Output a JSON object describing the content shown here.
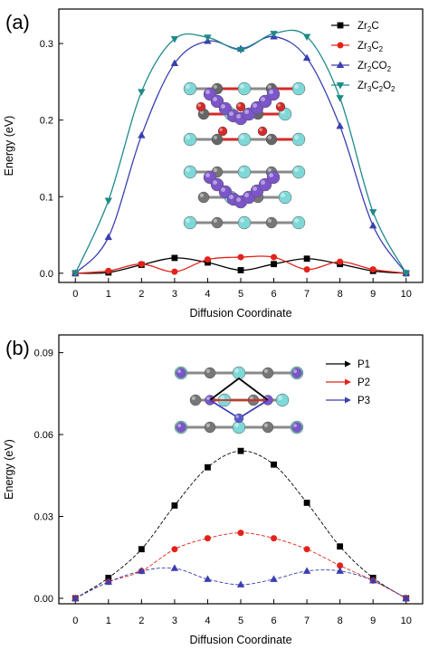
{
  "chart_data": [
    {
      "type": "line",
      "panel_label": "(a)",
      "xlabel": "Diffusion Coordinate",
      "ylabel": "Energy (eV)",
      "xlim": [
        -0.5,
        10.5
      ],
      "ylim": [
        -0.012,
        0.345
      ],
      "xticks": [
        "0",
        "1",
        "2",
        "3",
        "4",
        "5",
        "6",
        "7",
        "8",
        "9",
        "10"
      ],
      "yticks": [
        "0.0",
        "0.1",
        "0.2",
        "0.3"
      ],
      "ytick_values": [
        0.0,
        0.1,
        0.2,
        0.3
      ],
      "legend_position": "top-right",
      "x": [
        0,
        1,
        2,
        3,
        4,
        5,
        6,
        7,
        8,
        9,
        10
      ],
      "series": [
        {
          "name": "Zr2C",
          "sub": [
            "Zr",
            "2",
            "C"
          ],
          "color": "#000000",
          "marker": "square",
          "values": [
            0.0,
            0.001,
            0.011,
            0.02,
            0.014,
            0.004,
            0.012,
            0.019,
            0.012,
            0.003,
            0.0
          ]
        },
        {
          "name": "Zr3C2",
          "sub": [
            "Zr",
            "3",
            "C",
            "2"
          ],
          "color": "#e2231a",
          "marker": "circle",
          "values": [
            0.0,
            0.003,
            0.012,
            0.002,
            0.018,
            0.021,
            0.021,
            0.005,
            0.015,
            0.005,
            0.0
          ]
        },
        {
          "name": "Zr2CO2",
          "sub": [
            "Zr",
            "2",
            "CO",
            "2"
          ],
          "color": "#3a3fb0",
          "marker": "triangle-up",
          "values": [
            0.0,
            0.047,
            0.18,
            0.274,
            0.303,
            0.293,
            0.309,
            0.281,
            0.192,
            0.062,
            0.0
          ]
        },
        {
          "name": "Zr3C2O2",
          "sub": [
            "Zr",
            "3",
            "C",
            "2",
            "O",
            "2"
          ],
          "color": "#1f8a8a",
          "marker": "triangle-down",
          "values": [
            0.0,
            0.095,
            0.237,
            0.306,
            0.308,
            0.292,
            0.313,
            0.309,
            0.229,
            0.08,
            0.0
          ]
        }
      ]
    },
    {
      "type": "line",
      "panel_label": "(b)",
      "xlabel": "Diffusion Coordinate",
      "ylabel": "Energy (eV)",
      "xlim": [
        -0.5,
        10.5
      ],
      "ylim": [
        -0.002,
        0.0965
      ],
      "xticks": [
        "0",
        "1",
        "2",
        "3",
        "4",
        "5",
        "6",
        "7",
        "8",
        "9",
        "10"
      ],
      "yticks": [
        "0.00",
        "0.03",
        "0.06",
        "0.09"
      ],
      "ytick_values": [
        0.0,
        0.03,
        0.06,
        0.09
      ],
      "legend_position": "top-right",
      "x": [
        0,
        1,
        2,
        3,
        4,
        5,
        6,
        7,
        8,
        9,
        10
      ],
      "series": [
        {
          "name": "P1",
          "color": "#000000",
          "marker": "square",
          "values": [
            0.0,
            0.0075,
            0.018,
            0.034,
            0.048,
            0.054,
            0.049,
            0.035,
            0.019,
            0.0075,
            0.0
          ]
        },
        {
          "name": "P2",
          "color": "#e2231a",
          "marker": "circle",
          "values": [
            0.0,
            0.006,
            0.01,
            0.018,
            0.022,
            0.024,
            0.022,
            0.018,
            0.012,
            0.0065,
            0.0
          ]
        },
        {
          "name": "P3",
          "color": "#3a3fb0",
          "marker": "triangle-up",
          "values": [
            0.0,
            0.006,
            0.01,
            0.011,
            0.007,
            0.005,
            0.007,
            0.01,
            0.01,
            0.0065,
            0.0
          ]
        }
      ]
    }
  ]
}
